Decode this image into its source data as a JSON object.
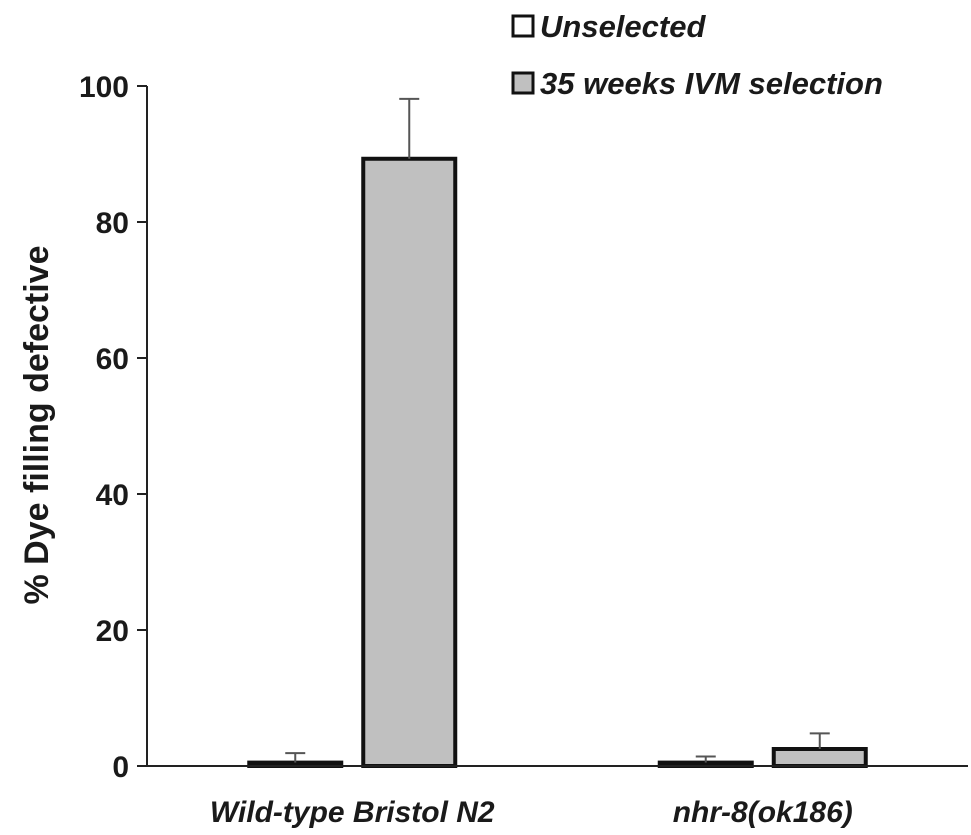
{
  "chart_data": {
    "type": "bar",
    "title": "",
    "xlabel": "",
    "ylabel": "% Dye filling defective",
    "ylim": [
      0,
      100
    ],
    "yticks": [
      0,
      20,
      40,
      60,
      80,
      100
    ],
    "categories": [
      "Wild-type Bristol N2",
      "nhr-8(ok186)"
    ],
    "series": [
      {
        "name": "Unselected",
        "color": "#ffffff",
        "values": [
          0.5,
          0.5
        ],
        "errors": [
          1.4,
          0.9
        ]
      },
      {
        "name": "35 weeks IVM selection",
        "color": "#c0c0c0",
        "values": [
          89.3,
          2.5
        ],
        "errors": [
          8.8,
          2.3
        ]
      }
    ],
    "legend_position": "top-right",
    "grid": false
  }
}
